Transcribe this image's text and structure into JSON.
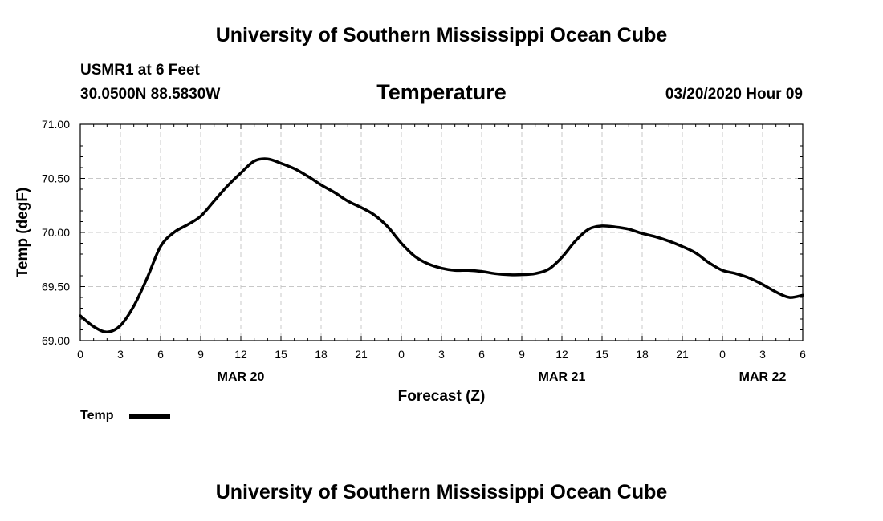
{
  "header": {
    "org_title_top": "University of Southern Mississippi Ocean Cube",
    "station": "USMR1 at 6 Feet",
    "coords": "30.0500N 88.5830W",
    "parameter": "Temperature",
    "timestamp": "03/20/2020 Hour 09",
    "org_title_bottom": "University of Southern Mississippi Ocean Cube"
  },
  "legend": {
    "label": "Temp"
  },
  "chart_data": {
    "type": "line",
    "xlabel": "Forecast (Z)",
    "ylabel": "Temp (degF)",
    "x_unit": "hours",
    "xlim": [
      0,
      54
    ],
    "ylim": [
      69.0,
      71.0
    ],
    "grid": true,
    "legend_position": "bottom-left",
    "x_ticks": [
      {
        "x": 0,
        "label": "0"
      },
      {
        "x": 3,
        "label": "3"
      },
      {
        "x": 6,
        "label": "6"
      },
      {
        "x": 9,
        "label": "9"
      },
      {
        "x": 12,
        "label": "12"
      },
      {
        "x": 15,
        "label": "15"
      },
      {
        "x": 18,
        "label": "18"
      },
      {
        "x": 21,
        "label": "21"
      },
      {
        "x": 24,
        "label": "0"
      },
      {
        "x": 27,
        "label": "3"
      },
      {
        "x": 30,
        "label": "6"
      },
      {
        "x": 33,
        "label": "9"
      },
      {
        "x": 36,
        "label": "12"
      },
      {
        "x": 39,
        "label": "15"
      },
      {
        "x": 42,
        "label": "18"
      },
      {
        "x": 45,
        "label": "21"
      },
      {
        "x": 48,
        "label": "0"
      },
      {
        "x": 51,
        "label": "3"
      },
      {
        "x": 54,
        "label": "6"
      }
    ],
    "date_labels": [
      {
        "x": 12,
        "label": "MAR 20"
      },
      {
        "x": 36,
        "label": "MAR 21"
      },
      {
        "x": 51,
        "label": "MAR 22"
      }
    ],
    "y_ticks": [
      {
        "y": 69.0,
        "label": "69.00"
      },
      {
        "y": 69.5,
        "label": "69.50"
      },
      {
        "y": 70.0,
        "label": "70.00"
      },
      {
        "y": 70.5,
        "label": "70.50"
      },
      {
        "y": 71.0,
        "label": "71.00"
      }
    ],
    "series": [
      {
        "name": "Temp",
        "color": "#000000",
        "points": [
          [
            0,
            69.23
          ],
          [
            1,
            69.13
          ],
          [
            2,
            69.08
          ],
          [
            3,
            69.14
          ],
          [
            4,
            69.32
          ],
          [
            5,
            69.58
          ],
          [
            6,
            69.87
          ],
          [
            7,
            70.0
          ],
          [
            8,
            70.07
          ],
          [
            9,
            70.15
          ],
          [
            10,
            70.29
          ],
          [
            11,
            70.43
          ],
          [
            12,
            70.55
          ],
          [
            13,
            70.66
          ],
          [
            14,
            70.68
          ],
          [
            15,
            70.64
          ],
          [
            16,
            70.59
          ],
          [
            17,
            70.52
          ],
          [
            18,
            70.44
          ],
          [
            19,
            70.37
          ],
          [
            20,
            70.29
          ],
          [
            21,
            70.23
          ],
          [
            22,
            70.16
          ],
          [
            23,
            70.05
          ],
          [
            24,
            69.9
          ],
          [
            25,
            69.78
          ],
          [
            26,
            69.71
          ],
          [
            27,
            69.67
          ],
          [
            28,
            69.65
          ],
          [
            29,
            69.65
          ],
          [
            30,
            69.64
          ],
          [
            31,
            69.62
          ],
          [
            32,
            69.61
          ],
          [
            33,
            69.61
          ],
          [
            34,
            69.62
          ],
          [
            35,
            69.66
          ],
          [
            36,
            69.77
          ],
          [
            37,
            69.92
          ],
          [
            38,
            70.03
          ],
          [
            39,
            70.06
          ],
          [
            40,
            70.05
          ],
          [
            41,
            70.03
          ],
          [
            42,
            69.99
          ],
          [
            43,
            69.96
          ],
          [
            44,
            69.92
          ],
          [
            45,
            69.87
          ],
          [
            46,
            69.81
          ],
          [
            47,
            69.72
          ],
          [
            48,
            69.65
          ],
          [
            49,
            69.62
          ],
          [
            50,
            69.58
          ],
          [
            51,
            69.52
          ],
          [
            52,
            69.45
          ],
          [
            53,
            69.4
          ],
          [
            54,
            69.42
          ]
        ]
      }
    ]
  }
}
